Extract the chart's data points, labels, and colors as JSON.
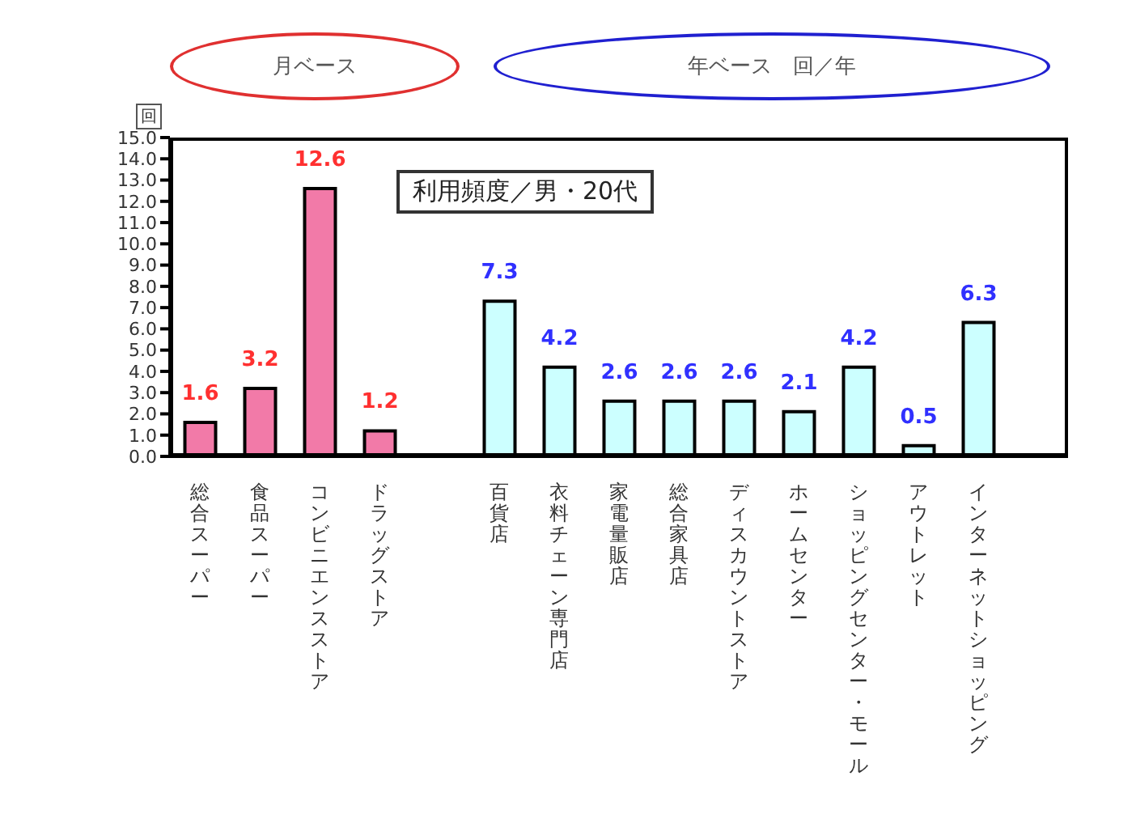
{
  "chart_data": {
    "type": "bar",
    "title": "利用頻度／男・20代",
    "ylabel": "回",
    "categories": [
      "総合スーパー",
      "食品スーパー",
      "コンビニエンスストア",
      "ドラッグストア",
      null,
      "百貨店",
      "衣料チェーン専門店",
      "家電量販店",
      "総合家具店",
      "ディスカウントストア",
      "ホームセンター",
      "ショッピングセンター・モール",
      "アウトレット",
      "インターネットショッピング",
      null
    ],
    "series": [
      {
        "color": "#f27aa8",
        "values": [
          1.6,
          3.2,
          12.6,
          1.2,
          null,
          null,
          null,
          null,
          null,
          null,
          null,
          null,
          null,
          null,
          null
        ]
      },
      {
        "color": "#ccffff",
        "values": [
          null,
          null,
          null,
          null,
          null,
          7.3,
          4.2,
          2.6,
          2.6,
          2.6,
          2.1,
          4.2,
          0.5,
          6.3,
          null
        ]
      }
    ],
    "annotations": [
      "月ベース",
      "年ベース　回／年"
    ],
    "ylim": [
      0,
      15
    ],
    "yticks": [
      {
        "value": 0,
        "label": "0.0"
      },
      {
        "value": 1,
        "label": "1.0"
      },
      {
        "value": 2,
        "label": "2.0"
      },
      {
        "value": 3,
        "label": "3.0"
      },
      {
        "value": 4,
        "label": "4.0"
      },
      {
        "value": 5,
        "label": "5.0"
      },
      {
        "value": 6,
        "label": "6.0"
      },
      {
        "value": 7,
        "label": "7.0"
      },
      {
        "value": 8,
        "label": "8.0"
      },
      {
        "value": 9,
        "label": "9.0"
      },
      {
        "value": 10,
        "label": "10.0"
      },
      {
        "value": 11,
        "label": "11.0"
      },
      {
        "value": 12,
        "label": "12.0"
      },
      {
        "value": 13,
        "label": "13.0"
      },
      {
        "value": 14,
        "label": "14.0"
      },
      {
        "value": 15,
        "label": "15.0"
      }
    ],
    "data_labels": true,
    "grid": false
  }
}
